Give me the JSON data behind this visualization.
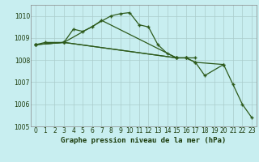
{
  "background_color": "#c8eef0",
  "grid_color": "#b0d8dc",
  "line_color": "#2d5a1b",
  "title": "Graphe pression niveau de la mer (hPa)",
  "xlim": [
    -0.5,
    23.5
  ],
  "ylim": [
    1005,
    1010.5
  ],
  "yticks": [
    1005,
    1006,
    1007,
    1008,
    1009,
    1010
  ],
  "xticks": [
    0,
    1,
    2,
    3,
    4,
    5,
    6,
    7,
    8,
    9,
    10,
    11,
    12,
    13,
    14,
    15,
    16,
    17,
    18,
    19,
    20,
    21,
    22,
    23
  ],
  "tick_fontsize": 5.5,
  "xlabel_fontsize": 6.5,
  "line1_x": [
    0,
    1,
    3,
    8,
    9,
    10,
    11,
    12,
    13,
    14,
    15,
    16,
    17,
    20,
    21,
    22,
    23
  ],
  "line1_y": [
    1008.7,
    1008.8,
    1008.8,
    1010.0,
    1010.1,
    1010.15,
    1009.6,
    1009.5,
    1008.7,
    1008.3,
    1008.1,
    1008.1,
    1007.9,
    1007.8,
    1006.9,
    1006.0,
    1005.4
  ],
  "line2_x": [
    0,
    3,
    4,
    5,
    6,
    7,
    15
  ],
  "line2_y": [
    1008.7,
    1008.8,
    1009.4,
    1009.3,
    1009.5,
    1009.8,
    1008.1
  ],
  "line3_x": [
    0,
    3,
    15,
    16,
    17,
    18,
    20
  ],
  "line3_y": [
    1008.7,
    1008.8,
    1008.1,
    1008.1,
    1007.9,
    1007.3,
    1007.8
  ],
  "line4_x": [
    0,
    3,
    15,
    16,
    17
  ],
  "line4_y": [
    1008.7,
    1008.8,
    1008.1,
    1008.1,
    1008.1
  ]
}
